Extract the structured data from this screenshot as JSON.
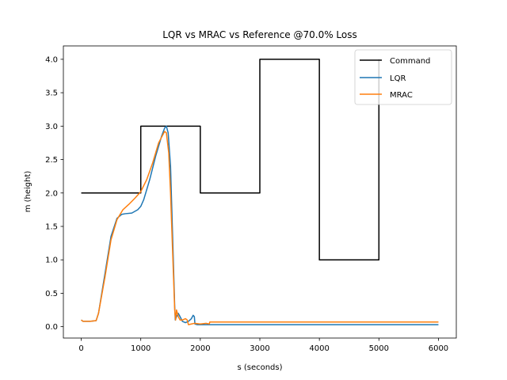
{
  "chart_data": {
    "type": "line",
    "title": "LQR vs MRAC vs Reference @70.0% Loss",
    "xlabel": "s (seconds)",
    "ylabel": "m (height)",
    "xlim": [
      -300,
      6300
    ],
    "ylim": [
      -0.17,
      4.2
    ],
    "xticks": [
      0,
      1000,
      2000,
      3000,
      4000,
      5000,
      6000
    ],
    "xtick_labels": [
      "0",
      "1000",
      "2000",
      "3000",
      "4000",
      "5000",
      "6000"
    ],
    "yticks": [
      0.0,
      0.5,
      1.0,
      1.5,
      2.0,
      2.5,
      3.0,
      3.5,
      4.0
    ],
    "ytick_labels": [
      "0.0",
      "0.5",
      "1.0",
      "1.5",
      "2.0",
      "2.5",
      "3.0",
      "3.5",
      "4.0"
    ],
    "grid": false,
    "legend_position": "top-right",
    "series": [
      {
        "name": "Command",
        "color": "#000000",
        "x": [
          0,
          1000,
          1000,
          2000,
          2000,
          3000,
          3000,
          4000,
          4000,
          5000,
          5000
        ],
        "y": [
          2.0,
          2.0,
          3.0,
          3.0,
          2.0,
          2.0,
          4.0,
          4.0,
          1.0,
          1.0,
          4.0
        ]
      },
      {
        "name": "LQR",
        "color": "#1f77b4",
        "x": [
          0,
          30,
          150,
          250,
          290,
          400,
          500,
          600,
          680,
          740,
          850,
          950,
          1000,
          1050,
          1150,
          1250,
          1350,
          1400,
          1430,
          1460,
          1500,
          1540,
          1570,
          1580,
          1600,
          1630,
          1660,
          1700,
          1750,
          1800,
          1850,
          1880,
          1900,
          1910,
          1950,
          2000,
          2100,
          2200,
          3000,
          4000,
          5000,
          6000
        ],
        "y": [
          0.1,
          0.08,
          0.08,
          0.09,
          0.2,
          0.8,
          1.35,
          1.62,
          1.68,
          1.69,
          1.7,
          1.75,
          1.8,
          1.9,
          2.2,
          2.55,
          2.85,
          2.97,
          3.0,
          2.9,
          2.4,
          1.2,
          0.3,
          0.1,
          0.15,
          0.2,
          0.15,
          0.08,
          0.06,
          0.08,
          0.12,
          0.17,
          0.15,
          0.04,
          0.03,
          0.03,
          0.03,
          0.03,
          0.03,
          0.03,
          0.03,
          0.03
        ]
      },
      {
        "name": "MRAC",
        "color": "#ff7f0e",
        "x": [
          0,
          30,
          150,
          250,
          290,
          400,
          500,
          600,
          700,
          800,
          900,
          1000,
          1100,
          1200,
          1300,
          1400,
          1430,
          1470,
          1500,
          1540,
          1570,
          1585,
          1600,
          1630,
          1660,
          1700,
          1750,
          1780,
          1800,
          1850,
          1900,
          2000,
          2100,
          2150,
          2160,
          2300,
          3000,
          4000,
          5000,
          6000
        ],
        "y": [
          0.1,
          0.08,
          0.08,
          0.09,
          0.2,
          0.75,
          1.3,
          1.6,
          1.75,
          1.83,
          1.92,
          2.02,
          2.2,
          2.45,
          2.75,
          2.92,
          2.9,
          2.6,
          2.0,
          1.0,
          0.25,
          0.1,
          0.25,
          0.15,
          0.1,
          0.1,
          0.12,
          0.1,
          0.03,
          0.04,
          0.05,
          0.04,
          0.05,
          0.04,
          0.07,
          0.07,
          0.07,
          0.07,
          0.07,
          0.07
        ]
      }
    ]
  }
}
